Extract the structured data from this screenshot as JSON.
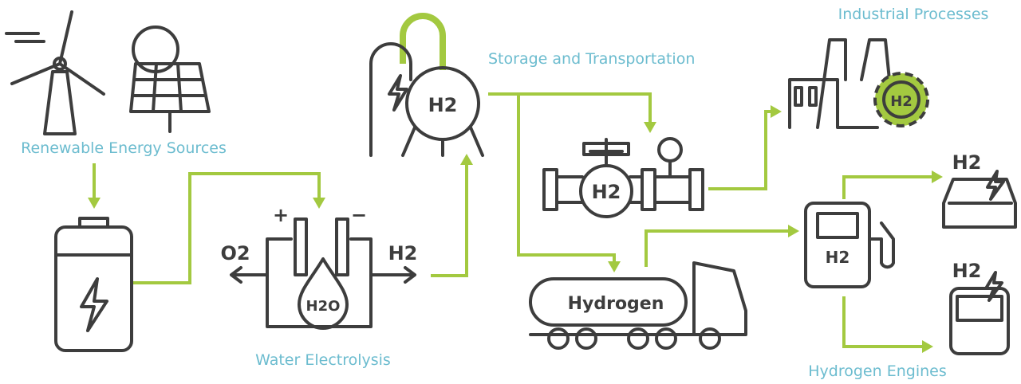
{
  "sections": {
    "renewable": "Renewable Energy Sources",
    "electrolysis": "Water Electrolysis",
    "storage": "Storage and Transportation",
    "industrial": "Industrial Processes",
    "engines": "Hydrogen Engines"
  },
  "icon_labels": {
    "plus": "+",
    "minus": "−",
    "oxygen": "O2",
    "hydrogen_out": "H2",
    "water": "H2O",
    "tank": "H2",
    "pipeline": "H2",
    "truck": "Hydrogen",
    "factory": "H2",
    "station": "H2",
    "car": "H2",
    "bus": "H2"
  }
}
